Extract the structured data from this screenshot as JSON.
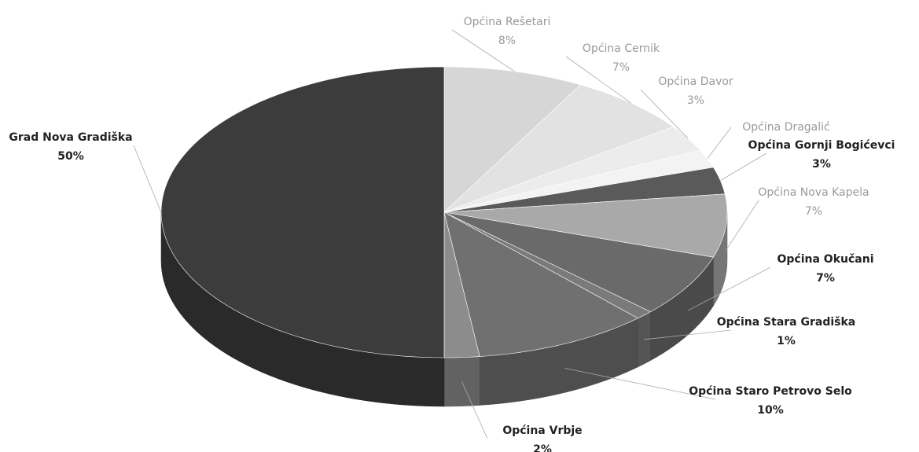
{
  "chart_data": {
    "type": "pie3d",
    "categories": [
      "Općina Rešetari",
      "Općina Cernik",
      "Općina Davor",
      "Općina Dragalić",
      "Općina Gornji Bogićevci",
      "Općina Nova Kapela",
      "Općina Okučani",
      "Općina Stara Gradiška",
      "Općina Staro Petrovo Selo",
      "Općina Vrbje",
      "Grad Nova Gradiška"
    ],
    "values": [
      8,
      7,
      3,
      2,
      3,
      7,
      7,
      1,
      10,
      2,
      50
    ],
    "value_labels": [
      "8%",
      "7%",
      "3%",
      null,
      "3%",
      "7%",
      "7%",
      "1%",
      "10%",
      "2%",
      "50%"
    ],
    "colors": [
      "#d6d6d6",
      "#e2e2e2",
      "#ececec",
      "#f3f3f3",
      "#5a5a5a",
      "#a9a9a9",
      "#6a6a6a",
      "#7a7a7a",
      "#707070",
      "#8c8c8c",
      "#3c3c3c"
    ]
  }
}
